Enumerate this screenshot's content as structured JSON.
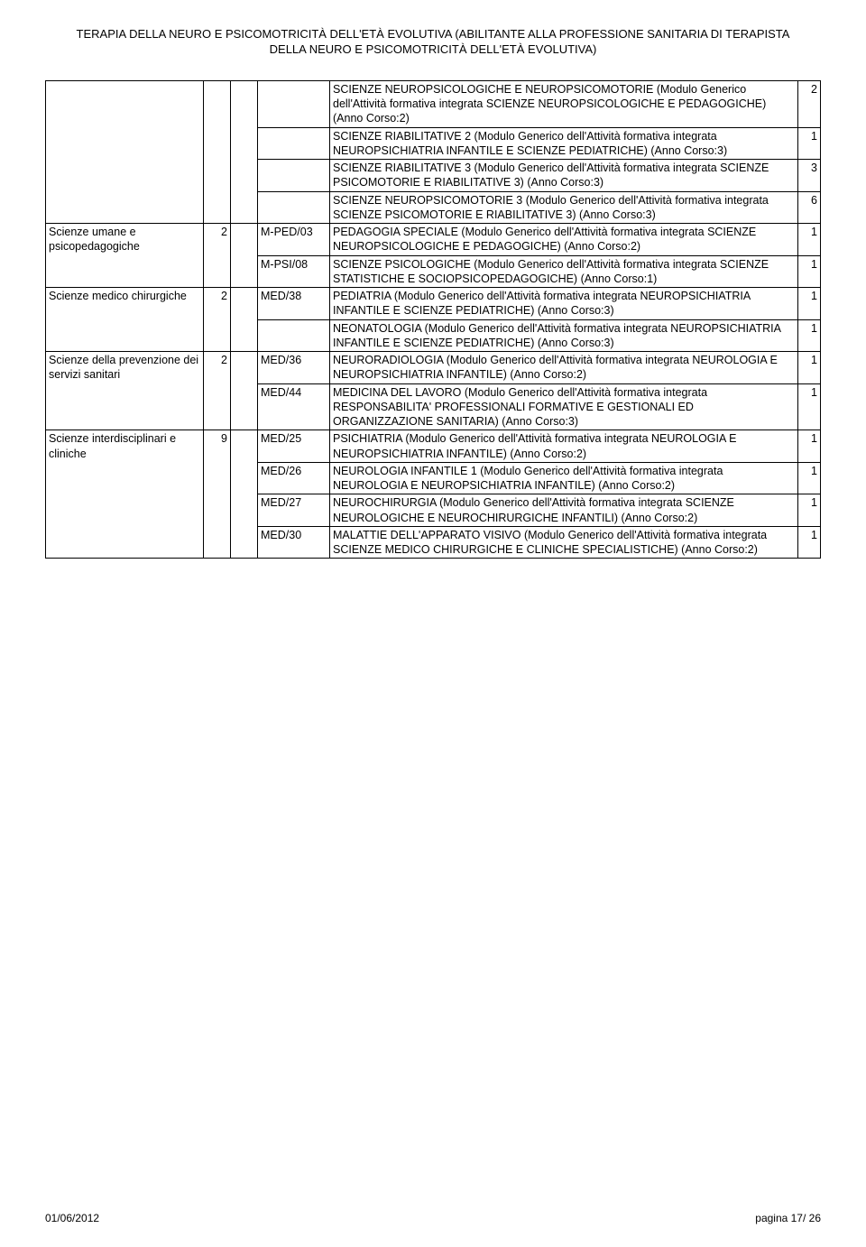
{
  "header": {
    "line1": "TERAPIA DELLA NEURO E PSICOMOTRICITÀ DELL'ETÀ EVOLUTIVA (ABILITANTE ALLA PROFESSIONE SANITARIA DI TERAPISTA",
    "line2": "DELLA NEURO E PSICOMOTRICITÀ DELL'ETÀ EVOLUTIVA)"
  },
  "groups": [
    {
      "labelA": "",
      "colB": "",
      "subrows": [
        {
          "colD": "",
          "colE": "SCIENZE NEUROPSICOLOGICHE E NEUROPSICOMOTORIE (Modulo Generico dell'Attività formativa integrata SCIENZE NEUROPSICOLOGICHE E PEDAGOGICHE) (Anno Corso:2)",
          "colF": "2"
        },
        {
          "colD": "",
          "colE": "SCIENZE RIABILITATIVE 2 (Modulo Generico dell'Attività formativa integrata NEUROPSICHIATRIA INFANTILE E SCIENZE PEDIATRICHE) (Anno Corso:3)",
          "colF": "1"
        },
        {
          "colD": "",
          "colE": "SCIENZE RIABILITATIVE 3 (Modulo Generico dell'Attività formativa integrata SCIENZE PSICOMOTORIE E RIABILITATIVE 3) (Anno Corso:3)",
          "colF": "3"
        },
        {
          "colD": "",
          "colE": "SCIENZE NEUROPSICOMOTORIE 3 (Modulo Generico dell'Attività formativa integrata SCIENZE PSICOMOTORIE E RIABILITATIVE 3) (Anno Corso:3)",
          "colF": "6"
        }
      ]
    },
    {
      "labelA": "Scienze umane e psicopedagogiche",
      "colB": "2",
      "subrows": [
        {
          "colD": "M-PED/03",
          "colE": "PEDAGOGIA SPECIALE (Modulo Generico dell'Attività formativa integrata SCIENZE NEUROPSICOLOGICHE E PEDAGOGICHE) (Anno Corso:2)",
          "colF": "1"
        },
        {
          "colD": "M-PSI/08",
          "colE": "SCIENZE PSICOLOGICHE (Modulo Generico dell'Attività formativa integrata SCIENZE STATISTICHE E SOCIOPSICOPEDAGOGICHE) (Anno Corso:1)",
          "colF": "1"
        }
      ]
    },
    {
      "labelA": "Scienze medico chirurgiche",
      "colB": "2",
      "subrows": [
        {
          "colD": "MED/38",
          "colE": "PEDIATRIA (Modulo Generico dell'Attività formativa integrata NEUROPSICHIATRIA INFANTILE E SCIENZE PEDIATRICHE) (Anno Corso:3)",
          "colF": "1"
        },
        {
          "colD": "",
          "colE": "NEONATOLOGIA (Modulo Generico dell'Attività formativa integrata NEUROPSICHIATRIA INFANTILE E SCIENZE PEDIATRICHE) (Anno Corso:3)",
          "colF": "1"
        }
      ]
    },
    {
      "labelA": "Scienze della prevenzione dei servizi sanitari",
      "colB": "2",
      "subrows": [
        {
          "colD": "MED/36",
          "colE": "NEURORADIOLOGIA (Modulo Generico dell'Attività formativa integrata NEUROLOGIA E NEUROPSICHIATRIA INFANTILE) (Anno Corso:2)",
          "colF": "1"
        },
        {
          "colD": "MED/44",
          "colE": "MEDICINA DEL LAVORO (Modulo Generico dell'Attività formativa integrata RESPONSABILITA' PROFESSIONALI FORMATIVE E GESTIONALI ED ORGANIZZAZIONE SANITARIA) (Anno Corso:3)",
          "colF": "1"
        }
      ]
    },
    {
      "labelA": "Scienze interdisciplinari e cliniche",
      "colB": "9",
      "subrows": [
        {
          "colD": "MED/25",
          "colE": "PSICHIATRIA (Modulo Generico dell'Attività formativa integrata NEUROLOGIA E NEUROPSICHIATRIA INFANTILE) (Anno Corso:2)",
          "colF": "1"
        },
        {
          "colD": "MED/26",
          "colE": "NEUROLOGIA INFANTILE 1 (Modulo Generico dell'Attività formativa integrata NEUROLOGIA E NEUROPSICHIATRIA INFANTILE) (Anno Corso:2)",
          "colF": "1"
        },
        {
          "colD": "MED/27",
          "colE": "NEUROCHIRURGIA (Modulo Generico dell'Attività formativa integrata SCIENZE NEUROLOGICHE E NEUROCHIRURGICHE INFANTILI) (Anno Corso:2)",
          "colF": "1"
        },
        {
          "colD": "MED/30",
          "colE": "MALATTIE DELL'APPARATO VISIVO (Modulo Generico dell'Attività formativa integrata SCIENZE MEDICO CHIRURGICHE E CLINICHE SPECIALISTICHE) (Anno Corso:2)",
          "colF": "1"
        }
      ]
    }
  ],
  "footer": {
    "date": "01/06/2012",
    "page": "pagina 17/ 26"
  }
}
